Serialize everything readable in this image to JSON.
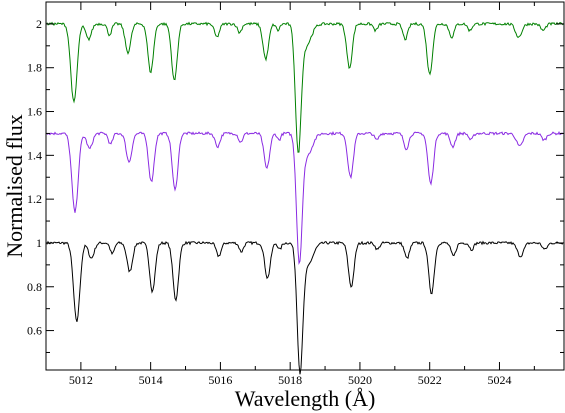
{
  "chart_data": {
    "type": "line",
    "title": "",
    "xlabel": "Wavelength (Å)",
    "ylabel": "Normalised flux",
    "xlim": [
      5011,
      5025.85
    ],
    "ylim": [
      0.42,
      2.1
    ],
    "x_ticks": [
      {
        "value": 5012,
        "label": "5012"
      },
      {
        "value": 5014,
        "label": "5014"
      },
      {
        "value": 5016,
        "label": "5016"
      },
      {
        "value": 5018,
        "label": "5018"
      },
      {
        "value": 5020,
        "label": "5020"
      },
      {
        "value": 5022,
        "label": "5022"
      },
      {
        "value": 5024,
        "label": "5024"
      }
    ],
    "y_ticks": [
      {
        "value": 0.6,
        "label": "0.6"
      },
      {
        "value": 0.8,
        "label": "0.8"
      },
      {
        "value": 1.0,
        "label": "1"
      },
      {
        "value": 1.2,
        "label": "1.2"
      },
      {
        "value": 1.4,
        "label": "1.4"
      },
      {
        "value": 1.6,
        "label": "1.6"
      },
      {
        "value": 1.8,
        "label": "1.8"
      },
      {
        "value": 2.0,
        "label": "2"
      }
    ],
    "grid": false,
    "legend": "none",
    "series": [
      {
        "color": "#000000",
        "continuum": 1.0,
        "lines": [
          {
            "center": 5011.88,
            "depth": 0.36,
            "width": 0.09
          },
          {
            "center": 5012.3,
            "depth": 0.07,
            "width": 0.08
          },
          {
            "center": 5012.9,
            "depth": 0.05,
            "width": 0.06
          },
          {
            "center": 5013.4,
            "depth": 0.13,
            "width": 0.08
          },
          {
            "center": 5014.05,
            "depth": 0.22,
            "width": 0.08
          },
          {
            "center": 5014.72,
            "depth": 0.26,
            "width": 0.08
          },
          {
            "center": 5015.95,
            "depth": 0.06,
            "width": 0.07
          },
          {
            "center": 5016.6,
            "depth": 0.04,
            "width": 0.06
          },
          {
            "center": 5017.35,
            "depth": 0.16,
            "width": 0.08
          },
          {
            "center": 5017.7,
            "depth": 0.03,
            "width": 0.05
          },
          {
            "center": 5018.28,
            "depth": 0.56,
            "width": 0.08
          },
          {
            "center": 5018.5,
            "depth": 0.1,
            "width": 0.15
          },
          {
            "center": 5019.75,
            "depth": 0.2,
            "width": 0.08
          },
          {
            "center": 5020.5,
            "depth": 0.03,
            "width": 0.06
          },
          {
            "center": 5021.35,
            "depth": 0.07,
            "width": 0.07
          },
          {
            "center": 5022.05,
            "depth": 0.23,
            "width": 0.08
          },
          {
            "center": 5022.68,
            "depth": 0.06,
            "width": 0.07
          },
          {
            "center": 5023.2,
            "depth": 0.03,
            "width": 0.06
          },
          {
            "center": 5024.6,
            "depth": 0.06,
            "width": 0.09
          },
          {
            "center": 5025.3,
            "depth": 0.03,
            "width": 0.07
          }
        ]
      },
      {
        "color": "#8a2be2",
        "continuum": 1.5,
        "lines": [
          {
            "center": 5011.83,
            "depth": 0.36,
            "width": 0.09
          },
          {
            "center": 5012.25,
            "depth": 0.07,
            "width": 0.08
          },
          {
            "center": 5012.85,
            "depth": 0.05,
            "width": 0.06
          },
          {
            "center": 5013.38,
            "depth": 0.13,
            "width": 0.08
          },
          {
            "center": 5014.02,
            "depth": 0.22,
            "width": 0.08
          },
          {
            "center": 5014.7,
            "depth": 0.26,
            "width": 0.08
          },
          {
            "center": 5015.92,
            "depth": 0.06,
            "width": 0.07
          },
          {
            "center": 5016.58,
            "depth": 0.04,
            "width": 0.06
          },
          {
            "center": 5017.33,
            "depth": 0.16,
            "width": 0.08
          },
          {
            "center": 5017.68,
            "depth": 0.03,
            "width": 0.05
          },
          {
            "center": 5018.26,
            "depth": 0.56,
            "width": 0.08
          },
          {
            "center": 5018.48,
            "depth": 0.1,
            "width": 0.15
          },
          {
            "center": 5019.73,
            "depth": 0.2,
            "width": 0.08
          },
          {
            "center": 5020.48,
            "depth": 0.03,
            "width": 0.06
          },
          {
            "center": 5021.33,
            "depth": 0.07,
            "width": 0.07
          },
          {
            "center": 5022.03,
            "depth": 0.23,
            "width": 0.08
          },
          {
            "center": 5022.66,
            "depth": 0.06,
            "width": 0.07
          },
          {
            "center": 5023.18,
            "depth": 0.03,
            "width": 0.06
          },
          {
            "center": 5024.58,
            "depth": 0.06,
            "width": 0.09
          },
          {
            "center": 5025.28,
            "depth": 0.03,
            "width": 0.07
          }
        ]
      },
      {
        "color": "#008000",
        "continuum": 2.0,
        "lines": [
          {
            "center": 5011.8,
            "depth": 0.36,
            "width": 0.09
          },
          {
            "center": 5012.22,
            "depth": 0.07,
            "width": 0.08
          },
          {
            "center": 5012.82,
            "depth": 0.05,
            "width": 0.06
          },
          {
            "center": 5013.35,
            "depth": 0.13,
            "width": 0.08
          },
          {
            "center": 5014.0,
            "depth": 0.22,
            "width": 0.08
          },
          {
            "center": 5014.68,
            "depth": 0.26,
            "width": 0.08
          },
          {
            "center": 5015.9,
            "depth": 0.06,
            "width": 0.07
          },
          {
            "center": 5016.55,
            "depth": 0.04,
            "width": 0.06
          },
          {
            "center": 5017.3,
            "depth": 0.16,
            "width": 0.08
          },
          {
            "center": 5017.65,
            "depth": 0.03,
            "width": 0.05
          },
          {
            "center": 5018.23,
            "depth": 0.56,
            "width": 0.08
          },
          {
            "center": 5018.45,
            "depth": 0.1,
            "width": 0.15
          },
          {
            "center": 5019.7,
            "depth": 0.2,
            "width": 0.08
          },
          {
            "center": 5020.45,
            "depth": 0.03,
            "width": 0.06
          },
          {
            "center": 5021.3,
            "depth": 0.07,
            "width": 0.07
          },
          {
            "center": 5022.0,
            "depth": 0.23,
            "width": 0.08
          },
          {
            "center": 5022.63,
            "depth": 0.06,
            "width": 0.07
          },
          {
            "center": 5023.15,
            "depth": 0.03,
            "width": 0.06
          },
          {
            "center": 5024.55,
            "depth": 0.06,
            "width": 0.09
          },
          {
            "center": 5025.25,
            "depth": 0.03,
            "width": 0.07
          }
        ]
      }
    ]
  }
}
